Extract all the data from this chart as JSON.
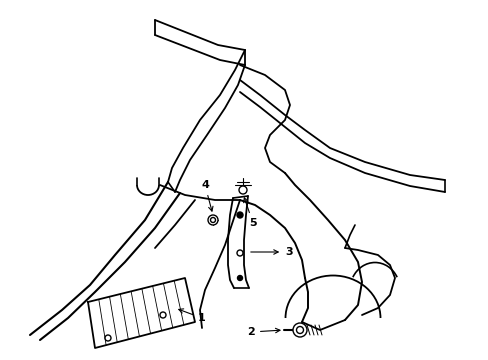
{
  "background_color": "#ffffff",
  "line_color": "#000000",
  "lw": 1.0,
  "fig_width": 4.89,
  "fig_height": 3.6,
  "dpi": 100
}
